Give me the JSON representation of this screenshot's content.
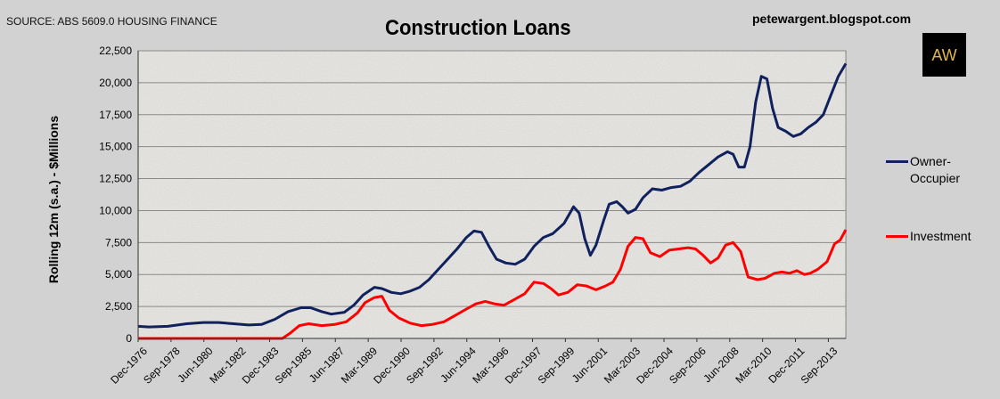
{
  "source_note": "SOURCE: ABS 5609.0 HOUSING FINANCE",
  "blog": "petewargent.blogspot.com",
  "logo_text": "AW",
  "colors": {
    "owner": "#10215e",
    "investment": "#ff0000",
    "background": "#d2d2d2",
    "plot": "#ecebe8",
    "grid": "#8a8a8a"
  },
  "chart_data": {
    "type": "line",
    "title": "Construction Loans",
    "ylabel": "Rolling 12m (s.a.) - $Millions",
    "xlabel": "",
    "ylim": [
      0,
      22500
    ],
    "y_ticks": [
      "0",
      "2,500",
      "5,000",
      "7,500",
      "10,000",
      "12,500",
      "15,000",
      "17,500",
      "20,000",
      "22,500"
    ],
    "x_range": [
      1976.92,
      2014.6
    ],
    "x_tick_labels": [
      {
        "label": "Dec-1976",
        "x": 1976.92
      },
      {
        "label": "Sep-1978",
        "x": 1978.67
      },
      {
        "label": "Jun-1980",
        "x": 1980.42
      },
      {
        "label": "Mar-1982",
        "x": 1982.17
      },
      {
        "label": "Dec-1983",
        "x": 1983.92
      },
      {
        "label": "Sep-1985",
        "x": 1985.67
      },
      {
        "label": "Jun-1987",
        "x": 1987.42
      },
      {
        "label": "Mar-1989",
        "x": 1989.17
      },
      {
        "label": "Dec-1990",
        "x": 1990.92
      },
      {
        "label": "Sep-1992",
        "x": 1992.67
      },
      {
        "label": "Jun-1994",
        "x": 1994.42
      },
      {
        "label": "Mar-1996",
        "x": 1996.17
      },
      {
        "label": "Dec-1997",
        "x": 1997.92
      },
      {
        "label": "Sep-1999",
        "x": 1999.67
      },
      {
        "label": "Jun-2001",
        "x": 2001.42
      },
      {
        "label": "Mar-2003",
        "x": 2003.17
      },
      {
        "label": "Dec-2004",
        "x": 2004.92
      },
      {
        "label": "Sep-2006",
        "x": 2006.67
      },
      {
        "label": "Jun-2008",
        "x": 2008.42
      },
      {
        "label": "Mar-2010",
        "x": 2010.17
      },
      {
        "label": "Dec-2011",
        "x": 2011.92
      },
      {
        "label": "Sep-2013",
        "x": 2013.67
      }
    ],
    "legend_position": "right",
    "grid": "horizontal",
    "series": [
      {
        "name": "Owner-\nOccupier",
        "legend_lines": [
          "Owner-",
          "Occupier"
        ],
        "color": "#10215e",
        "points": [
          [
            1976.92,
            950
          ],
          [
            1977.5,
            900
          ],
          [
            1978.5,
            950
          ],
          [
            1979.5,
            1150
          ],
          [
            1980.4,
            1250
          ],
          [
            1981.2,
            1250
          ],
          [
            1982.0,
            1150
          ],
          [
            1982.8,
            1050
          ],
          [
            1983.5,
            1100
          ],
          [
            1984.2,
            1500
          ],
          [
            1984.9,
            2100
          ],
          [
            1985.6,
            2400
          ],
          [
            1986.1,
            2400
          ],
          [
            1986.7,
            2100
          ],
          [
            1987.2,
            1900
          ],
          [
            1987.9,
            2050
          ],
          [
            1988.4,
            2600
          ],
          [
            1988.9,
            3400
          ],
          [
            1989.5,
            4000
          ],
          [
            1989.9,
            3900
          ],
          [
            1990.4,
            3600
          ],
          [
            1990.9,
            3500
          ],
          [
            1991.4,
            3700
          ],
          [
            1991.9,
            4000
          ],
          [
            1992.4,
            4600
          ],
          [
            1992.9,
            5400
          ],
          [
            1993.4,
            6200
          ],
          [
            1993.9,
            7000
          ],
          [
            1994.4,
            7900
          ],
          [
            1994.8,
            8400
          ],
          [
            1995.2,
            8300
          ],
          [
            1995.6,
            7200
          ],
          [
            1996.0,
            6200
          ],
          [
            1996.5,
            5900
          ],
          [
            1997.0,
            5800
          ],
          [
            1997.5,
            6200
          ],
          [
            1998.0,
            7200
          ],
          [
            1998.5,
            7900
          ],
          [
            1999.0,
            8200
          ],
          [
            1999.6,
            9000
          ],
          [
            2000.1,
            10300
          ],
          [
            2000.4,
            9800
          ],
          [
            2000.7,
            7800
          ],
          [
            2001.0,
            6500
          ],
          [
            2001.3,
            7300
          ],
          [
            2001.7,
            9200
          ],
          [
            2002.0,
            10500
          ],
          [
            2002.4,
            10700
          ],
          [
            2002.7,
            10300
          ],
          [
            2003.0,
            9800
          ],
          [
            2003.4,
            10100
          ],
          [
            2003.8,
            11000
          ],
          [
            2004.3,
            11700
          ],
          [
            2004.8,
            11600
          ],
          [
            2005.3,
            11800
          ],
          [
            2005.8,
            11900
          ],
          [
            2006.3,
            12300
          ],
          [
            2006.8,
            13000
          ],
          [
            2007.3,
            13600
          ],
          [
            2007.8,
            14200
          ],
          [
            2008.3,
            14600
          ],
          [
            2008.6,
            14400
          ],
          [
            2008.9,
            13400
          ],
          [
            2009.2,
            13400
          ],
          [
            2009.5,
            15000
          ],
          [
            2009.8,
            18500
          ],
          [
            2010.1,
            20500
          ],
          [
            2010.4,
            20300
          ],
          [
            2010.7,
            18000
          ],
          [
            2011.0,
            16500
          ],
          [
            2011.4,
            16200
          ],
          [
            2011.8,
            15800
          ],
          [
            2012.2,
            16000
          ],
          [
            2012.6,
            16500
          ],
          [
            2013.0,
            16900
          ],
          [
            2013.4,
            17500
          ],
          [
            2013.8,
            19000
          ],
          [
            2014.2,
            20500
          ],
          [
            2014.6,
            21500
          ]
        ]
      },
      {
        "name": "Investment",
        "legend_lines": [
          "Investment"
        ],
        "color": "#ff0000",
        "points": [
          [
            1976.92,
            0
          ],
          [
            1984.6,
            0
          ],
          [
            1985.0,
            400
          ],
          [
            1985.5,
            1000
          ],
          [
            1986.0,
            1150
          ],
          [
            1986.7,
            1000
          ],
          [
            1987.4,
            1100
          ],
          [
            1988.0,
            1300
          ],
          [
            1988.6,
            2000
          ],
          [
            1989.0,
            2800
          ],
          [
            1989.5,
            3200
          ],
          [
            1989.9,
            3300
          ],
          [
            1990.3,
            2200
          ],
          [
            1990.8,
            1600
          ],
          [
            1991.4,
            1200
          ],
          [
            1992.0,
            1000
          ],
          [
            1992.6,
            1100
          ],
          [
            1993.2,
            1300
          ],
          [
            1993.8,
            1800
          ],
          [
            1994.4,
            2300
          ],
          [
            1994.9,
            2700
          ],
          [
            1995.4,
            2900
          ],
          [
            1995.9,
            2700
          ],
          [
            1996.4,
            2600
          ],
          [
            1996.9,
            3000
          ],
          [
            1997.5,
            3500
          ],
          [
            1998.0,
            4400
          ],
          [
            1998.5,
            4300
          ],
          [
            1998.9,
            3900
          ],
          [
            1999.3,
            3400
          ],
          [
            1999.8,
            3600
          ],
          [
            2000.3,
            4200
          ],
          [
            2000.8,
            4100
          ],
          [
            2001.3,
            3800
          ],
          [
            2001.8,
            4100
          ],
          [
            2002.2,
            4400
          ],
          [
            2002.6,
            5400
          ],
          [
            2003.0,
            7200
          ],
          [
            2003.4,
            7900
          ],
          [
            2003.8,
            7800
          ],
          [
            2004.2,
            6700
          ],
          [
            2004.7,
            6400
          ],
          [
            2005.2,
            6900
          ],
          [
            2005.7,
            7000
          ],
          [
            2006.2,
            7100
          ],
          [
            2006.6,
            7000
          ],
          [
            2007.0,
            6500
          ],
          [
            2007.4,
            5900
          ],
          [
            2007.8,
            6300
          ],
          [
            2008.2,
            7300
          ],
          [
            2008.6,
            7500
          ],
          [
            2009.0,
            6800
          ],
          [
            2009.4,
            4800
          ],
          [
            2009.9,
            4600
          ],
          [
            2010.3,
            4700
          ],
          [
            2010.8,
            5100
          ],
          [
            2011.2,
            5200
          ],
          [
            2011.6,
            5100
          ],
          [
            2012.0,
            5300
          ],
          [
            2012.4,
            5000
          ],
          [
            2012.7,
            5100
          ],
          [
            2013.1,
            5400
          ],
          [
            2013.6,
            6000
          ],
          [
            2014.0,
            7400
          ],
          [
            2014.3,
            7700
          ],
          [
            2014.6,
            8500
          ]
        ]
      }
    ]
  }
}
